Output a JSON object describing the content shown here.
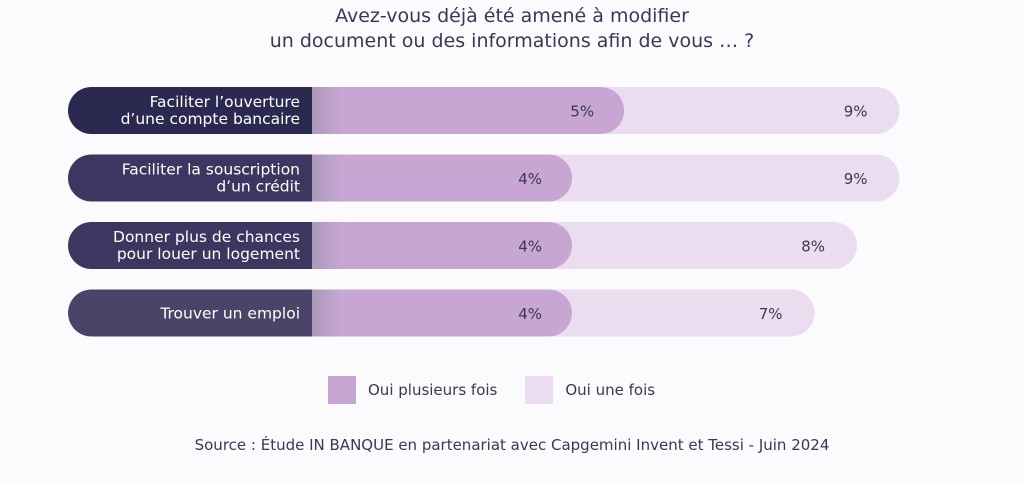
{
  "title_lines": [
    "Avez-vous déjà été amené à modifier",
    "un document ou des informations afin de vous … ?"
  ],
  "source": "Source : Étude IN BANQUE en partenariat avec Capgemini Invent et Tessi - Juin 2024",
  "colors": {
    "label_pill": "#2b2950",
    "label_pill_light": "#4a4568",
    "plusieurs": "#c7a6d3",
    "une": "#ebdcf0",
    "text": "#3a3856"
  },
  "chart_data": {
    "type": "bar",
    "orientation": "horizontal",
    "stacked": true,
    "categories": [
      [
        "Faciliter l’ouverture",
        "d’une compte bancaire"
      ],
      [
        "Faciliter la souscription",
        "d’un crédit"
      ],
      [
        "Donner plus de chances",
        "pour louer un logement"
      ],
      [
        "Trouver un emploi"
      ]
    ],
    "series": [
      {
        "name": "Oui plusieurs fois",
        "values": [
          5,
          4,
          4,
          4
        ],
        "labels": [
          "5%",
          "4%",
          "4%",
          "4%"
        ]
      },
      {
        "name": "Oui une fois",
        "values": [
          9,
          9,
          8,
          7
        ],
        "labels": [
          "9%",
          "9%",
          "8%",
          "7%"
        ]
      }
    ],
    "legend_position": "bottom",
    "grid": false
  },
  "legend": [
    {
      "label": "Oui plusieurs fois"
    },
    {
      "label": "Oui une fois"
    }
  ]
}
